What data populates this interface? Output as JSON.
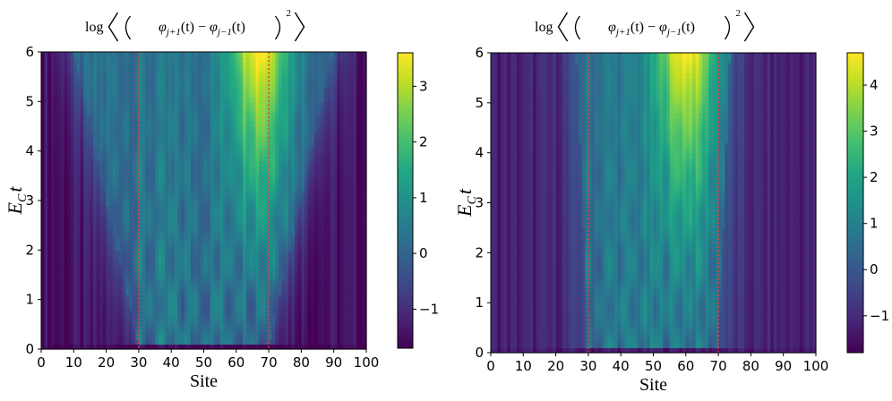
{
  "chart_data": [
    {
      "type": "heatmap",
      "title": "log ⟨(φ_{j+1}(t) − φ_{j−1}(t))^2⟩",
      "title_parts": {
        "prefix": "log",
        "phi": "φ",
        "sub_plus": "j+1",
        "sub_minus": "j−1",
        "t": "(t)",
        "minus": "−",
        "power": "2"
      },
      "xlabel": "Site",
      "ylabel_main": "E",
      "ylabel_sub": "C",
      "ylabel_var": "t",
      "xlim": [
        0,
        100
      ],
      "ylim": [
        0,
        6
      ],
      "x_ticks": [
        0,
        10,
        20,
        30,
        40,
        50,
        60,
        70,
        80,
        90,
        100
      ],
      "y_ticks": [
        0,
        1,
        2,
        3,
        4,
        5,
        6
      ],
      "colorbar": {
        "colormap": "viridis",
        "min": -1.7,
        "max": 3.6,
        "ticks": [
          -1,
          0,
          1,
          2,
          3
        ]
      },
      "markers": {
        "style": "dotted vertical lines",
        "color": "#e8413a",
        "x": [
          30,
          70
        ]
      },
      "field_model": {
        "cone_origin": [
          30,
          70
        ],
        "cone_speed": 3.3,
        "interior_level": 0.0,
        "outside_level": -1.5,
        "top_right_peak": 3.5,
        "peak_site": 67
      }
    },
    {
      "type": "heatmap",
      "title": "log ⟨(φ_{j+1}(t) − φ_{j−1}(t))^2⟩",
      "title_parts": {
        "prefix": "log",
        "phi": "φ",
        "sub_plus": "j+1",
        "sub_minus": "j−1",
        "t": "(t)",
        "minus": "−",
        "power": "2"
      },
      "xlabel": "Site",
      "ylabel_main": "E",
      "ylabel_sub": "C",
      "ylabel_var": "t",
      "xlim": [
        0,
        100
      ],
      "ylim": [
        0,
        6
      ],
      "x_ticks": [
        0,
        10,
        20,
        30,
        40,
        50,
        60,
        70,
        80,
        90,
        100
      ],
      "y_ticks": [
        0,
        1,
        2,
        3,
        4,
        5,
        6
      ],
      "colorbar": {
        "colormap": "viridis",
        "min": -1.8,
        "max": 4.7,
        "ticks": [
          -1,
          0,
          1,
          2,
          3,
          4
        ]
      },
      "markers": {
        "style": "dotted vertical lines",
        "color": "#e8413a",
        "x": [
          30,
          70
        ]
      },
      "field_model": {
        "cone_origin": [
          30,
          70
        ],
        "cone_speed": 0.6,
        "interior_level": 0.5,
        "outside_level": -1.2,
        "top_right_peak": 4.5,
        "peak_site": 60
      }
    }
  ]
}
